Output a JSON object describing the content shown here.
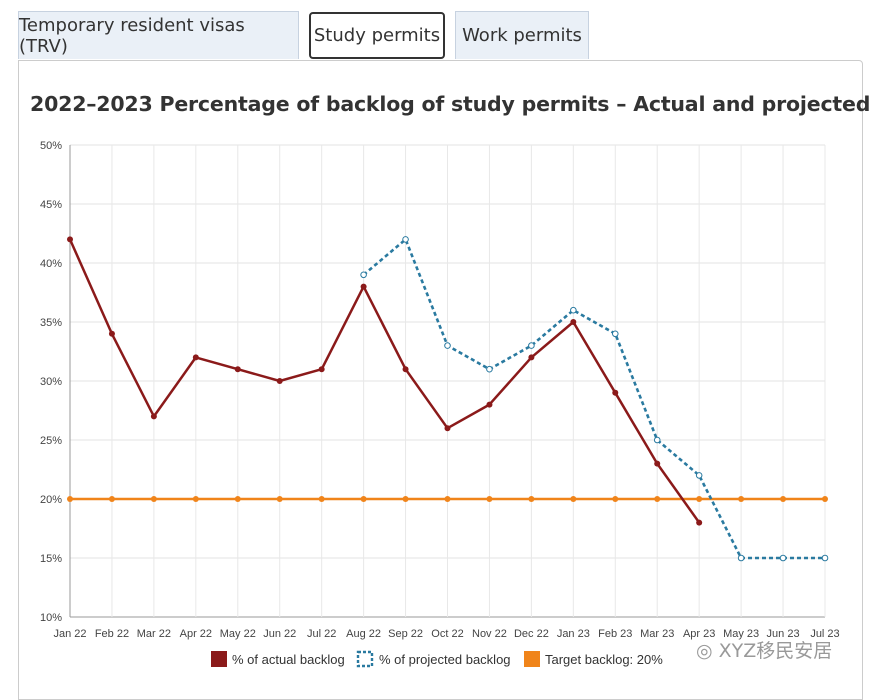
{
  "tabs": [
    {
      "label": "Temporary resident visas (TRV)"
    },
    {
      "label": "Study permits"
    },
    {
      "label": "Work permits"
    }
  ],
  "watermark": "XYZ移民安居",
  "chart_data": {
    "type": "line",
    "title": "2022–2023 Percentage of backlog of study permits – Actual and projected",
    "categories": [
      "Jan 22",
      "Feb 22",
      "Mar 22",
      "Apr 22",
      "May 22",
      "Jun 22",
      "Jul 22",
      "Aug 22",
      "Sep 22",
      "Oct 22",
      "Nov 22",
      "Dec 22",
      "Jan 23",
      "Feb 23",
      "Mar 23",
      "Apr 23",
      "May 23",
      "Jun 23",
      "Jul 23"
    ],
    "yticks": [
      "10%",
      "15%",
      "20%",
      "25%",
      "30%",
      "35%",
      "40%",
      "45%",
      "50%"
    ],
    "ylim": [
      10,
      50
    ],
    "grid": true,
    "legend_position": "bottom",
    "series": [
      {
        "name": "% of actual backlog",
        "color": "#8b1a1a",
        "style": "solid",
        "values": [
          42,
          34,
          27,
          32,
          31,
          30,
          31,
          38,
          31,
          26,
          28,
          32,
          35,
          29,
          23,
          18,
          null,
          null,
          null
        ]
      },
      {
        "name": "% of projected backlog",
        "color": "#2a7aa0",
        "style": "dotted",
        "values": [
          null,
          null,
          null,
          null,
          null,
          null,
          null,
          39,
          42,
          33,
          31,
          33,
          36,
          34,
          25,
          22,
          15,
          15,
          15
        ]
      },
      {
        "name": "Target backlog: 20%",
        "color": "#f0841a",
        "style": "solid",
        "values": [
          20,
          20,
          20,
          20,
          20,
          20,
          20,
          20,
          20,
          20,
          20,
          20,
          20,
          20,
          20,
          20,
          20,
          20,
          20
        ]
      }
    ]
  }
}
